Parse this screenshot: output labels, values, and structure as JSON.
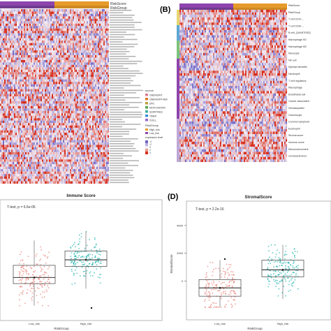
{
  "panels": {
    "B": "(B)",
    "D": "(D)"
  },
  "heatmap_A": {
    "top_labels": [
      "RiskScore",
      "RiskGroup"
    ],
    "legend": {
      "title1": "source",
      "items1": [
        "CIBERSORT",
        "CIBERSORT-ABS",
        "EPIC",
        "MCPCOUNTER",
        "QUANTISEQ",
        "TIMER",
        "XCELL"
      ],
      "title2": "RiskGroup",
      "items2": [
        "High_risk",
        "Low_risk"
      ],
      "title3": "expression level",
      "scale": [
        "-4",
        "-2",
        "0",
        "2",
        "4"
      ]
    }
  },
  "heatmap_B": {
    "row_labels": [
      "RiskScore",
      "RiskGroup",
      "T cell CD4+...",
      "T cell CD8+...",
      "B cell_QUANTISEQ",
      "Macrophage M1",
      "Macrophage M2",
      "Monocyte",
      "NK cell",
      "Myeloid dendritic",
      "Neutrophil",
      "T cell regulatory",
      "Macrophage",
      "Endothelial cell",
      "Cancer associated",
      "Hematopoietic",
      "Granulocyte",
      "Common lymphoid",
      "Eosinophil",
      "Stroma score",
      "Immune score",
      "Microenvironment",
      "uncharacterized"
    ],
    "bottom_label": "source"
  },
  "colors": {
    "high": "#d7301f",
    "low": "#6a51a3",
    "mid": "#f2eef6",
    "bar_purple": "#8e44ad",
    "bar_orange": "#e69b2b",
    "low_risk_points": "#e8837a",
    "high_risk_points": "#2bb5b0"
  },
  "chart_data": [
    {
      "type": "box",
      "title": "Immune Score",
      "annotation": "T-test, p = 6.6e-06",
      "xlabel": "RiskGroup",
      "categories": [
        "Low_risk",
        "High_risk"
      ],
      "boxes": [
        {
          "name": "Low_risk",
          "q1": 1100,
          "median": 1650,
          "q3": 2750,
          "whisker_low": -900,
          "whisker_high": 5000,
          "mean": 1650
        },
        {
          "name": "High_risk",
          "q1": 2650,
          "median": 3250,
          "q3": 4050,
          "whisker_low": 650,
          "whisker_high": 5800,
          "mean": 3250
        }
      ],
      "ylim": [
        -1800,
        7800
      ]
    },
    {
      "type": "box",
      "title": "StromalScore",
      "annotation": "T-test, p = 2.2e-16",
      "ylabel": "StromalScore",
      "xlabel": "RiskGroup",
      "categories": [
        "Low_risk",
        "High_risk"
      ],
      "yticks": [
        0,
        2000,
        4000
      ],
      "boxes": [
        {
          "name": "Low_risk",
          "q1": -1100,
          "median": -500,
          "q3": 100,
          "whisker_low": -1900,
          "whisker_high": 1500,
          "mean": -500
        },
        {
          "name": "High_risk",
          "q1": 300,
          "median": 800,
          "q3": 1500,
          "whisker_low": -1300,
          "whisker_high": 2600,
          "mean": 800
        }
      ],
      "ylim": [
        -2500,
        5000
      ]
    }
  ]
}
